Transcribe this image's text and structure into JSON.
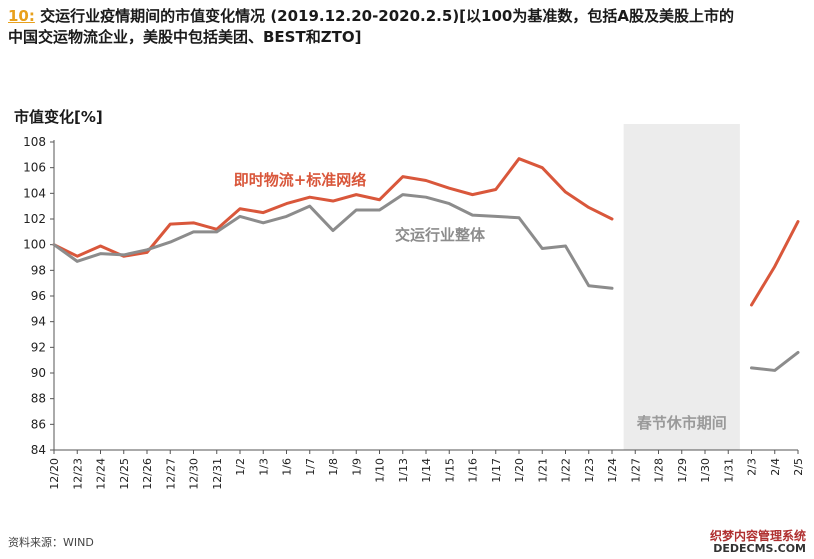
{
  "header": {
    "figure_number": "10:",
    "title_line1": " 交运行业疫情期间的市值变化情况 (2019.12.20-2020.2.5)[以100为基准数，包括A股及美股上市的",
    "title_line2": "中国交运物流企业，美股中包括美团、BEST和ZTO]"
  },
  "source": "资料来源：WIND",
  "watermark": {
    "line1": "织梦内容管理系统",
    "line2": "DEDECMS.COM"
  },
  "colors": {
    "series_express": "#d9573b",
    "series_industry": "#8c8c8c",
    "holiday_band": "#ececec"
  },
  "chart_data": {
    "type": "line",
    "ylabel": "市值变化[%]",
    "ylim": [
      84,
      108
    ],
    "yticks": [
      84,
      86,
      88,
      90,
      92,
      94,
      96,
      98,
      100,
      102,
      104,
      106,
      108
    ],
    "grid": false,
    "categories": [
      "12/20",
      "12/23",
      "12/24",
      "12/25",
      "12/26",
      "12/27",
      "12/30",
      "12/31",
      "1/2",
      "1/3",
      "1/6",
      "1/7",
      "1/8",
      "1/9",
      "1/10",
      "1/13",
      "1/14",
      "1/15",
      "1/16",
      "1/17",
      "1/20",
      "1/21",
      "1/22",
      "1/23",
      "1/24",
      "1/27",
      "1/28",
      "1/29",
      "1/30",
      "1/31",
      "2/3",
      "2/4",
      "2/5"
    ],
    "series": [
      {
        "name": "即时物流+标准网络",
        "color": "#d9573b",
        "values": [
          100.0,
          99.1,
          99.9,
          99.1,
          99.4,
          101.6,
          101.7,
          101.2,
          102.8,
          102.5,
          103.2,
          103.7,
          103.4,
          103.9,
          103.5,
          105.3,
          105.0,
          104.4,
          103.9,
          104.3,
          106.7,
          106.0,
          104.1,
          102.9,
          102.0,
          null,
          null,
          null,
          null,
          null,
          95.3,
          98.3,
          101.8
        ]
      },
      {
        "name": "交运行业整体",
        "color": "#8c8c8c",
        "values": [
          100.0,
          98.7,
          99.3,
          99.2,
          99.6,
          100.2,
          101.0,
          101.0,
          102.2,
          101.7,
          102.2,
          103.0,
          101.1,
          102.7,
          102.7,
          103.9,
          103.7,
          103.2,
          102.3,
          102.2,
          102.1,
          99.7,
          99.9,
          96.8,
          96.6,
          null,
          null,
          null,
          null,
          null,
          90.4,
          90.2,
          91.6
        ]
      }
    ],
    "annotations": [
      {
        "text": "春节休市期间",
        "type": "shaded_range",
        "from": "1/27",
        "to": "1/31"
      }
    ]
  }
}
